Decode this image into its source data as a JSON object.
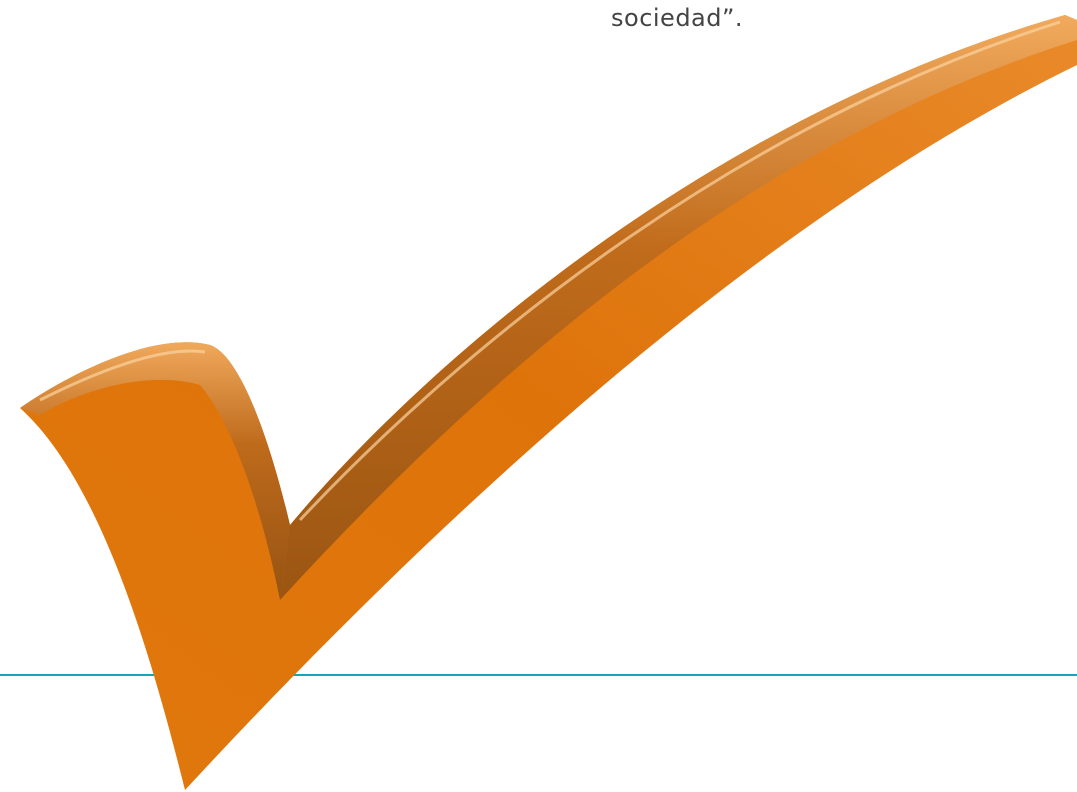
{
  "text": {
    "closing": "sociedad”."
  }
}
